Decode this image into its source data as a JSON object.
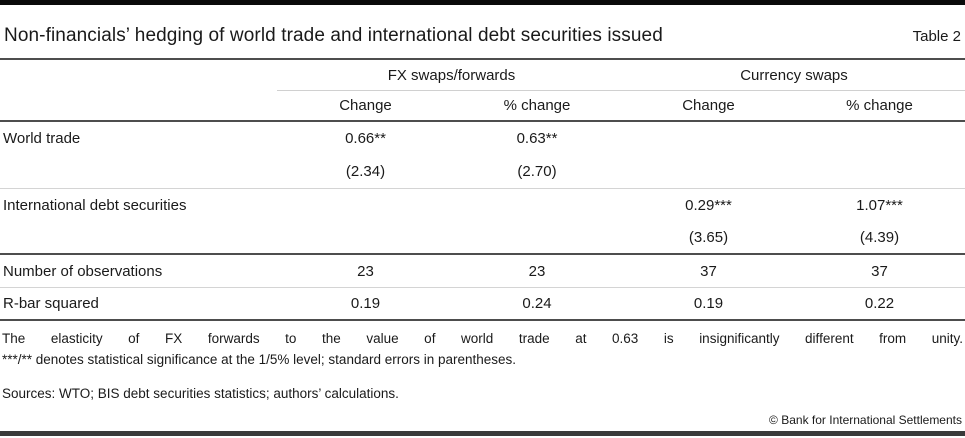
{
  "title": "Non-financials’ hedging of world trade and international debt securities issued",
  "table_label": "Table 2",
  "table": {
    "col_groups": [
      {
        "label": "FX swaps/forwards"
      },
      {
        "label": "Currency swaps"
      }
    ],
    "sub_headers": [
      "Change",
      "% change",
      "Change",
      "% change"
    ],
    "rows": [
      {
        "label": "World trade",
        "cells": [
          "0.66**",
          "0.63**",
          "",
          ""
        ]
      },
      {
        "label": "",
        "cells": [
          "(2.34)",
          "(2.70)",
          "",
          ""
        ]
      },
      {
        "label": "International debt securities",
        "cells": [
          "",
          "",
          "0.29***",
          "1.07***"
        ]
      },
      {
        "label": "",
        "cells": [
          "",
          "",
          "(3.65)",
          "(4.39)"
        ]
      },
      {
        "label": "Number of observations",
        "cells": [
          "23",
          "23",
          "37",
          "37"
        ]
      },
      {
        "label": "R-bar squared",
        "cells": [
          "0.19",
          "0.24",
          "0.19",
          "0.22"
        ]
      }
    ]
  },
  "footnotes": {
    "line1": "The elasticity of FX forwards to the value of world trade at 0.63 is insignificantly different from unity.",
    "line2": "***/** denotes statistical significance at the 1/5% level; standard errors in parentheses."
  },
  "sources": "Sources: WTO; BIS debt securities statistics; authors’ calculations.",
  "copyright": "© Bank for International Settlements",
  "colors": {
    "top_bar": "#0a0a0a",
    "bottom_bar": "#3a3a3a",
    "rule_dark": "#4d4d4d",
    "rule_light": "#d4d4d4",
    "text": "#1a1a1a"
  }
}
